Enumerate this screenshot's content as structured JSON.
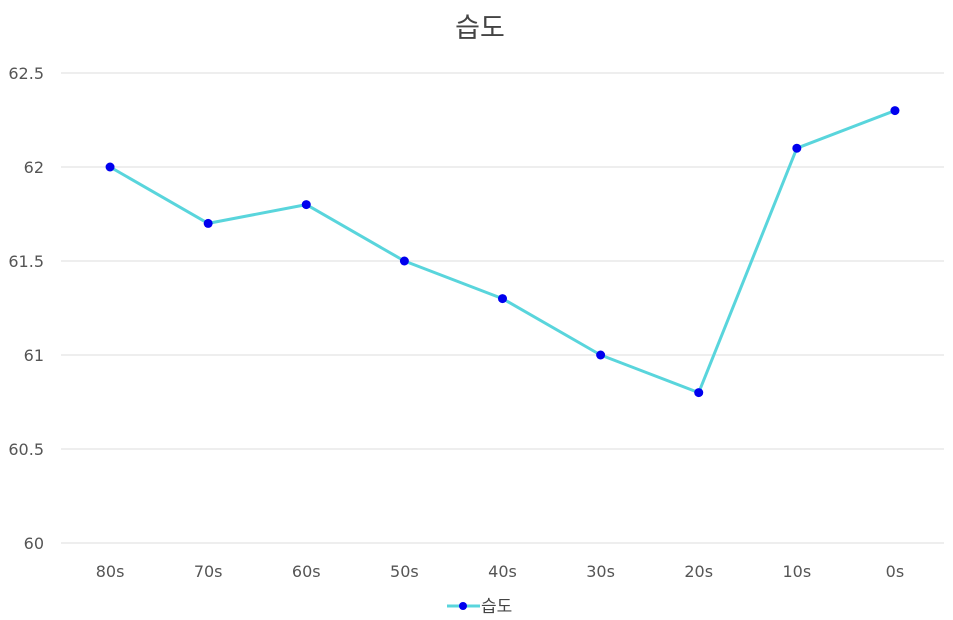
{
  "chart_data": {
    "type": "line",
    "title": "습도",
    "categories": [
      "80s",
      "70s",
      "60s",
      "50s",
      "40s",
      "30s",
      "20s",
      "10s",
      "0s"
    ],
    "series": [
      {
        "name": "습도",
        "values": [
          62.0,
          61.7,
          61.8,
          61.5,
          61.3,
          61.0,
          60.8,
          62.1,
          62.3
        ],
        "line_color": "#59d5dc",
        "marker_color": "#0000ee"
      }
    ],
    "yticks": [
      "60",
      "60.5",
      "61",
      "61.5",
      "62",
      "62.5"
    ],
    "ylim": [
      60,
      62.5
    ],
    "grid": true,
    "legend_position": "bottom"
  }
}
